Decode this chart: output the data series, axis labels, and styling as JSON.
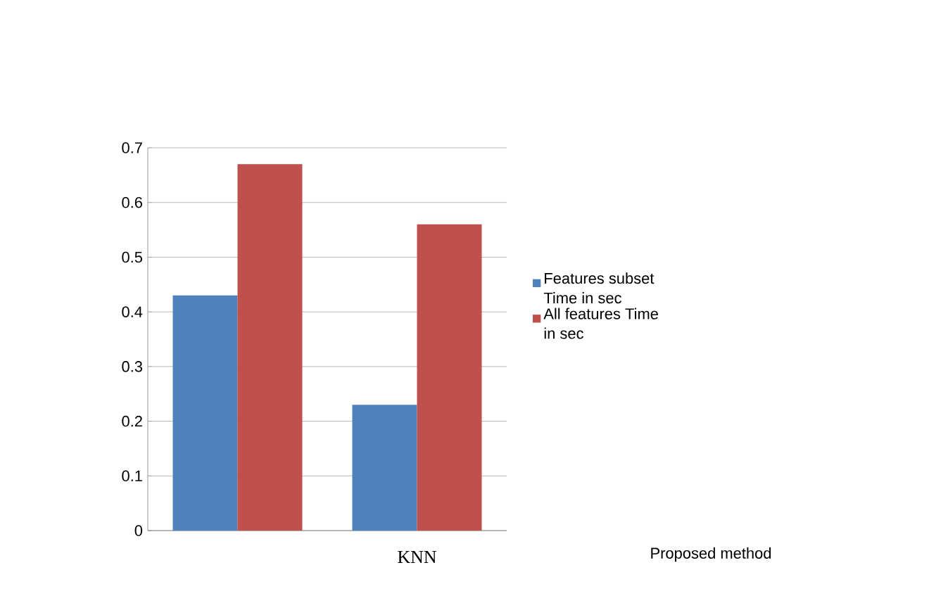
{
  "chart_data": {
    "type": "bar",
    "categories": [
      null,
      "KNN"
    ],
    "series": [
      {
        "name": "Features subset Time in sec",
        "color": "#4f81bd",
        "values": [
          0.43,
          0.23
        ]
      },
      {
        "name": "All features  Time in sec",
        "color": "#c0504d",
        "values": [
          0.67,
          0.56
        ]
      }
    ],
    "ylim": [
      0,
      0.7
    ],
    "yticks": [
      0,
      0.1,
      0.2,
      0.3,
      0.4,
      0.5,
      0.6,
      0.7
    ],
    "grid": "y",
    "legend": "right",
    "annotations": [
      "Proposed method"
    ]
  }
}
